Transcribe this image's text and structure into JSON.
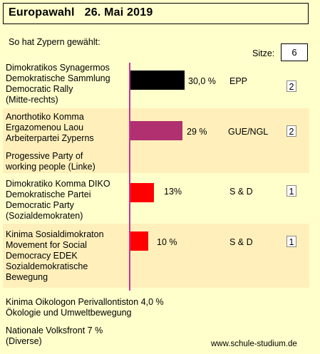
{
  "header": {
    "title": "Europawahl   26. Mai 2019"
  },
  "subtitle": "So hat Zypern gewählt:",
  "seats_total": {
    "label": "Sitze:",
    "value": "6"
  },
  "chart_data": {
    "type": "bar",
    "orientation": "horizontal",
    "title": "Europawahl   26. Mai 2019",
    "categories": [
      "Dimokratikos Synagermos",
      "Anorthotiko Komma Ergazomenou Laou",
      "Dimokratiko Komma DIKO",
      "Kinima Sosialdimokraton EDEK"
    ],
    "series": [
      {
        "values": [
          30.0,
          29,
          13,
          10
        ]
      }
    ],
    "value_labels": [
      "30,0 %",
      "29 %",
      "13%",
      "10 %"
    ],
    "groups": [
      "EPP",
      "GUE/NGL",
      "S & D",
      "S & D"
    ],
    "seats": [
      "2",
      "2",
      "1",
      "1"
    ],
    "bar_colors": [
      "#000000",
      "#b03070",
      "#ff0000",
      "#ff0000"
    ],
    "xlim": [
      0,
      100
    ],
    "grid": false,
    "axis_color": "#cc3399"
  },
  "parties": [
    {
      "name": "Dimokratikos Synagermos\nDemokratische Sammlung\nDemocratic Rally\n(Mitte-rechts)",
      "value": 30.0,
      "value_label": "30,0 %",
      "group": "EPP",
      "seats": "2",
      "color": "#000000"
    },
    {
      "name": "Anorthotiko Komma\nErgazomenou Laou\nArbeiterpartei Zyperns",
      "name2": "Progessive Party of\nworking people  (Linke)",
      "value": 29,
      "value_label": "29 %",
      "group": "GUE/NGL",
      "seats": "2",
      "color": "#b03070"
    },
    {
      "name": "Dimokratiko Komma DIKO\nDemokratische Partei\nDemocratic Party\n(Sozialdemokraten)",
      "value": 13,
      "value_label": "13%",
      "group": "S & D",
      "seats": "1",
      "color": "#ff0000"
    },
    {
      "name": "Kinima Sosialdimokraton\nMovement for Social\nDemocracy   EDEK\nSozialdemokratische\nBewegung",
      "value": 10,
      "value_label": "10 %",
      "group": "S & D",
      "seats": "1",
      "color": "#ff0000"
    }
  ],
  "others": [
    {
      "text": "Kinima Oikologon Perivallontiston   4,0 %\nÖkologie und Umweltbewegung"
    },
    {
      "text": "Nationale Volksfront  7 %\n(Diverse)"
    }
  ],
  "footer": {
    "source": "www.schule-studium.de"
  }
}
